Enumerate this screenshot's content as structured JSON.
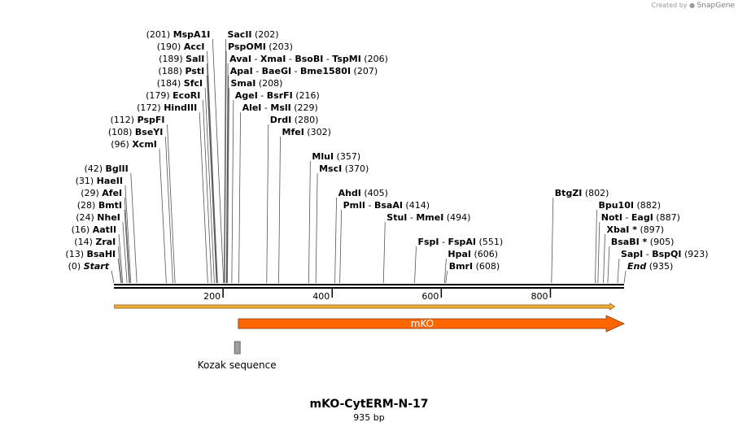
{
  "credit": {
    "prefix": "Created by",
    "brand": "SnapGene"
  },
  "title": "mKO-CytERM-N-17",
  "subtitle": "935 bp",
  "sequence_length": 935,
  "scale_ticks": [
    "200",
    "400",
    "600",
    "800"
  ],
  "sites": [
    {
      "pos": "(201)",
      "names": [
        "MspA1I"
      ],
      "side": "L",
      "row": 0,
      "bp": 201
    },
    {
      "pos": "(202)",
      "names": [
        "SacII"
      ],
      "side": "R",
      "row": 0,
      "bp": 202
    },
    {
      "pos": "(190)",
      "names": [
        "AccI"
      ],
      "side": "L",
      "row": 1,
      "bp": 190
    },
    {
      "pos": "(203)",
      "names": [
        "PspOMI"
      ],
      "side": "R",
      "row": 1,
      "bp": 203
    },
    {
      "pos": "(189)",
      "names": [
        "SalI"
      ],
      "side": "L",
      "row": 2,
      "bp": 189
    },
    {
      "pos": "(206)",
      "names": [
        "AvaI",
        "XmaI",
        "BsoBI",
        "TspMI"
      ],
      "side": "R",
      "row": 2,
      "bp": 206
    },
    {
      "pos": "(188)",
      "names": [
        "PstI"
      ],
      "side": "L",
      "row": 3,
      "bp": 188
    },
    {
      "pos": "(207)",
      "names": [
        "ApaI",
        "BaeGI",
        "Bme1580I"
      ],
      "side": "R",
      "row": 3,
      "bp": 207
    },
    {
      "pos": "(184)",
      "names": [
        "SfcI"
      ],
      "side": "L",
      "row": 4,
      "bp": 184
    },
    {
      "pos": "(208)",
      "names": [
        "SmaI"
      ],
      "side": "R",
      "row": 4,
      "bp": 208
    },
    {
      "pos": "(179)",
      "names": [
        "EcoRI"
      ],
      "side": "L",
      "row": 5,
      "bp": 179
    },
    {
      "pos": "(216)",
      "names": [
        "AgeI",
        "BsrFI"
      ],
      "side": "R",
      "row": 5,
      "bp": 216
    },
    {
      "pos": "(172)",
      "names": [
        "HindIII"
      ],
      "side": "L",
      "row": 6,
      "bp": 172
    },
    {
      "pos": "(229)",
      "names": [
        "AleI",
        "MslI"
      ],
      "side": "R",
      "row": 6,
      "bp": 229
    },
    {
      "pos": "(112)",
      "names": [
        "PspFI"
      ],
      "side": "L",
      "row": 7,
      "bp": 112
    },
    {
      "pos": "(280)",
      "names": [
        "DrdI"
      ],
      "side": "R",
      "row": 7,
      "bp": 280
    },
    {
      "pos": "(108)",
      "names": [
        "BseYI"
      ],
      "side": "L",
      "row": 8,
      "bp": 108
    },
    {
      "pos": "(302)",
      "names": [
        "MfeI"
      ],
      "side": "R",
      "row": 8,
      "bp": 302
    },
    {
      "pos": "(96)",
      "names": [
        "XcmI"
      ],
      "side": "L",
      "row": 9,
      "bp": 96
    },
    {
      "pos": "(357)",
      "names": [
        "MluI"
      ],
      "side": "R",
      "row": 10,
      "bp": 357
    },
    {
      "pos": "(370)",
      "names": [
        "MscI"
      ],
      "side": "R",
      "row": 11,
      "bp": 370
    },
    {
      "pos": "(42)",
      "names": [
        "BglII"
      ],
      "side": "L",
      "row": 11,
      "bp": 42
    },
    {
      "pos": "(31)",
      "names": [
        "HaeII"
      ],
      "side": "L",
      "row": 12,
      "bp": 31
    },
    {
      "pos": "(405)",
      "names": [
        "AhdI"
      ],
      "side": "R",
      "row": 13,
      "bp": 405
    },
    {
      "pos": "(29)",
      "names": [
        "AfeI"
      ],
      "side": "L",
      "row": 13,
      "bp": 29
    },
    {
      "pos": "(414)",
      "names": [
        "PmlI",
        "BsaAI"
      ],
      "side": "R",
      "row": 14,
      "bp": 414
    },
    {
      "pos": "(28)",
      "names": [
        "BmtI"
      ],
      "side": "L",
      "row": 14,
      "bp": 28
    },
    {
      "pos": "(494)",
      "names": [
        "StuI",
        "MmeI"
      ],
      "side": "R",
      "row": 15,
      "bp": 494
    },
    {
      "pos": "(24)",
      "names": [
        "NheI"
      ],
      "side": "L",
      "row": 15,
      "bp": 24
    },
    {
      "pos": "(16)",
      "names": [
        "AatII"
      ],
      "side": "L",
      "row": 16,
      "bp": 16
    },
    {
      "pos": "(551)",
      "names": [
        "FspI",
        "FspAI"
      ],
      "side": "R",
      "row": 17,
      "bp": 551
    },
    {
      "pos": "(14)",
      "names": [
        "ZraI"
      ],
      "side": "L",
      "row": 17,
      "bp": 14
    },
    {
      "pos": "(606)",
      "names": [
        "HpaI"
      ],
      "side": "R",
      "row": 18,
      "bp": 606
    },
    {
      "pos": "(13)",
      "names": [
        "BsaHI"
      ],
      "side": "L",
      "row": 18,
      "bp": 13
    },
    {
      "pos": "(608)",
      "names": [
        "BmrI"
      ],
      "side": "R",
      "row": 19,
      "bp": 608
    },
    {
      "pos": "(0)",
      "names": [
        "Start"
      ],
      "side": "L",
      "row": 19,
      "bp": 0,
      "italic": true
    },
    {
      "pos": "(802)",
      "names": [
        "BtgZI"
      ],
      "side": "R",
      "row": 13,
      "bp": 802
    },
    {
      "pos": "(882)",
      "names": [
        "Bpu10I"
      ],
      "side": "R",
      "row": 14,
      "bp": 882
    },
    {
      "pos": "(887)",
      "names": [
        "NotI",
        "EagI"
      ],
      "side": "R",
      "row": 15,
      "bp": 887
    },
    {
      "pos": "(897)",
      "names": [
        "XbaI *"
      ],
      "side": "R",
      "row": 16,
      "bp": 897
    },
    {
      "pos": "(905)",
      "names": [
        "BsaBI *"
      ],
      "side": "R",
      "row": 17,
      "bp": 905
    },
    {
      "pos": "(923)",
      "names": [
        "SapI",
        "BspQI"
      ],
      "side": "R",
      "row": 18,
      "bp": 923
    },
    {
      "pos": "(935)",
      "names": [
        "End"
      ],
      "side": "R",
      "row": 19,
      "bp": 935,
      "italic": true
    }
  ],
  "features": [
    {
      "name": "mKO",
      "type": "cds",
      "start": 228,
      "end": 935,
      "color": "#ff6600",
      "label_color": "#ffffff"
    },
    {
      "name": "Kozak sequence",
      "type": "misc",
      "start": 221,
      "end": 230,
      "color": "#9e9e9e"
    }
  ],
  "orf": {
    "start": 1,
    "end": 918,
    "color": "#f2b233",
    "edge_color": "#7a4a12"
  },
  "colors": {
    "backbone": "#000000",
    "leader": "#555555"
  }
}
